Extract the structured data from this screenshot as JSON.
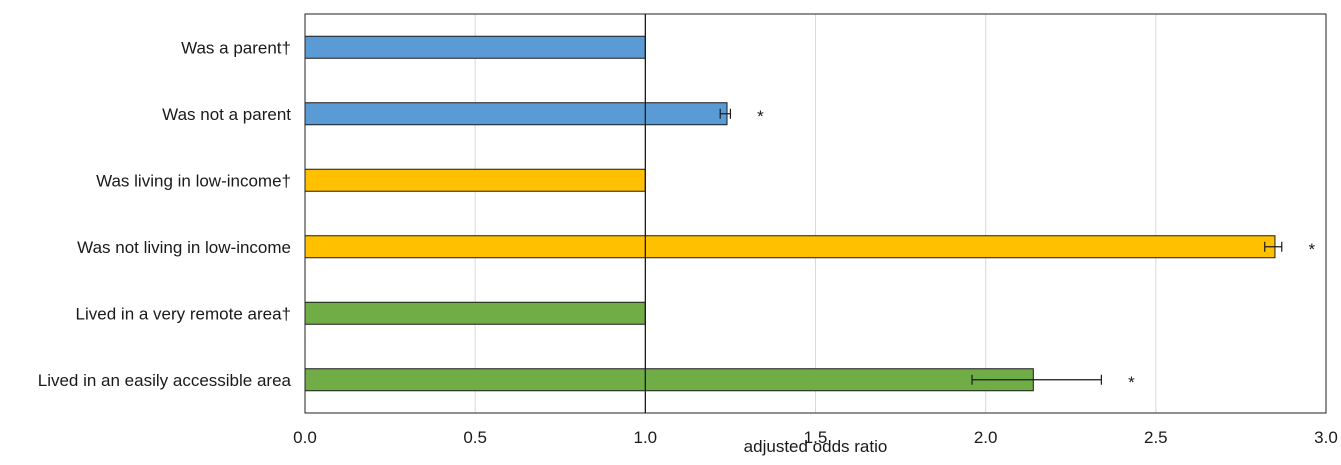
{
  "chart_data": {
    "type": "bar",
    "orientation": "horizontal",
    "categories": [
      "Was a parent†",
      "Was not a parent",
      "Was living in low-income†",
      "Was not living in low-income",
      "Lived in a very remote area†",
      "Lived in an easily accessible area"
    ],
    "values": [
      1.0,
      1.24,
      1.0,
      2.85,
      1.0,
      2.14
    ],
    "error_low": [
      null,
      1.22,
      null,
      2.82,
      null,
      1.96
    ],
    "error_high": [
      null,
      1.25,
      null,
      2.87,
      null,
      2.34
    ],
    "significance": [
      "",
      "*",
      "",
      "*",
      "",
      "*"
    ],
    "bar_colors": [
      "#5b9bd5",
      "#5b9bd5",
      "#ffc000",
      "#ffc000",
      "#70ad47",
      "#70ad47"
    ],
    "reference_line": 1.0,
    "xlabel": "adjusted odds ratio",
    "ylabel": "",
    "title": "",
    "xlim": [
      0.0,
      3.0
    ],
    "xticks": [
      "0.0",
      "0.5",
      "1.0",
      "1.5",
      "2.0",
      "2.5",
      "3.0"
    ],
    "xtick_values": [
      0.0,
      0.5,
      1.0,
      1.5,
      2.0,
      2.5,
      3.0
    ],
    "grid": "vertical",
    "legend": "none"
  }
}
